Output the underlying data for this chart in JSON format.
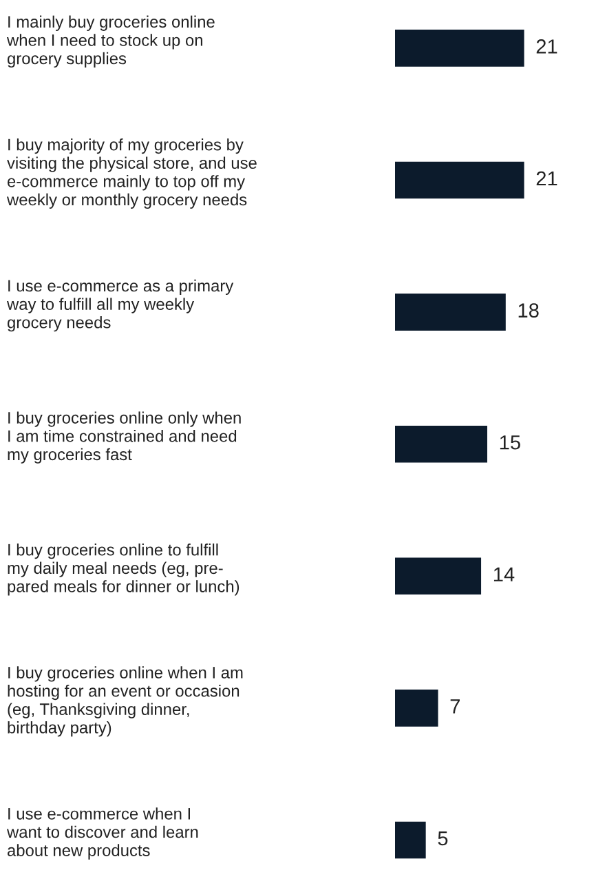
{
  "chart_data": {
    "type": "bar",
    "orientation": "horizontal",
    "categories": [
      "I mainly buy groceries online\nwhen I need to stock up on\ngrocery supplies",
      "I buy majority of my groceries by\nvisiting the physical store, and use\ne-commerce mainly to top off my\nweekly or monthly grocery needs",
      "I use e-commerce as a primary\nway to fulfill all my weekly\ngrocery needs",
      "I buy groceries online only when\nI am time constrained and need\nmy groceries fast",
      "I buy groceries online to fulfill\nmy daily meal needs (eg, pre-\npared meals for dinner or lunch)",
      "I buy groceries online when I am\nhosting for an event or occasion\n(eg, Thanksgiving dinner,\nbirthday party)",
      "I use e-commerce when I\nwant to discover and learn\nabout new products"
    ],
    "values": [
      21,
      21,
      18,
      15,
      14,
      7,
      5
    ],
    "color": "#0c1b2c",
    "data_labels": true
  }
}
